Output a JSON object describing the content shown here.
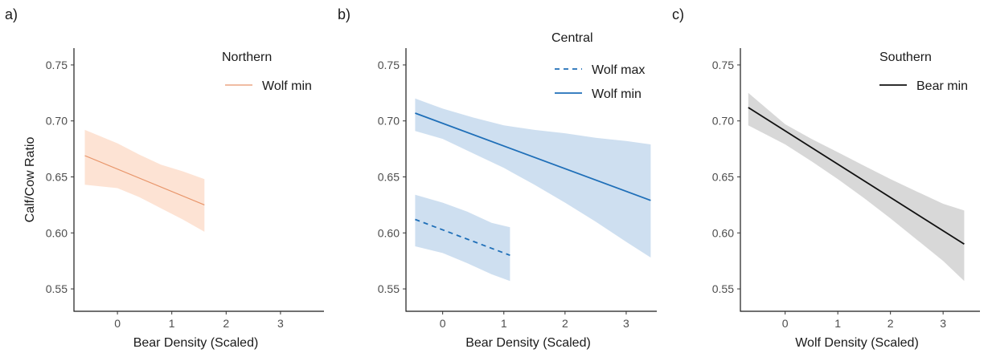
{
  "chart_data": [
    {
      "type": "line",
      "panel_label": "a)",
      "xlabel": "Bear Density (Scaled)",
      "ylabel": "Calf/Cow Ratio",
      "xlim": [
        -0.8,
        3.8
      ],
      "ylim": [
        0.53,
        0.765
      ],
      "xticks": [
        0,
        1,
        2,
        3
      ],
      "yticks": [
        0.55,
        0.6,
        0.65,
        0.7,
        0.75
      ],
      "ytick_labels": [
        "0.55",
        "0.60",
        "0.65",
        "0.70",
        "0.75"
      ],
      "grid": false,
      "legend": {
        "title": "Northern",
        "placement": "top-right"
      },
      "series": [
        {
          "name": "Wolf min",
          "color": "#e8956a",
          "fill": "#fde0cf",
          "dash": "solid",
          "x": [
            -0.6,
            1.6
          ],
          "y": [
            0.669,
            0.625
          ],
          "band_x": [
            -0.6,
            0.0,
            0.4,
            0.8,
            1.2,
            1.6
          ],
          "band_lower": [
            0.643,
            0.64,
            0.632,
            0.622,
            0.612,
            0.601
          ],
          "band_upper": [
            0.692,
            0.68,
            0.67,
            0.661,
            0.655,
            0.648
          ]
        }
      ]
    },
    {
      "type": "line",
      "panel_label": "b)",
      "xlabel": "Bear Density (Scaled)",
      "ylabel": "",
      "xlim": [
        -0.6,
        3.5
      ],
      "ylim": [
        0.53,
        0.765
      ],
      "xticks": [
        0,
        1,
        2,
        3
      ],
      "yticks": [
        0.55,
        0.6,
        0.65,
        0.7,
        0.75
      ],
      "ytick_labels": [
        "0.55",
        "0.60",
        "0.65",
        "0.70",
        "0.75"
      ],
      "grid": false,
      "legend": {
        "title": "Central",
        "placement": "top-right"
      },
      "series": [
        {
          "name": "Wolf max",
          "color": "#1f6fb8",
          "fill": "#c9dcee",
          "dash": "dashed",
          "x": [
            -0.45,
            1.1
          ],
          "y": [
            0.612,
            0.58
          ],
          "band_x": [
            -0.45,
            0.0,
            0.4,
            0.8,
            1.1
          ],
          "band_lower": [
            0.588,
            0.582,
            0.573,
            0.563,
            0.557
          ],
          "band_upper": [
            0.634,
            0.627,
            0.619,
            0.609,
            0.605
          ]
        },
        {
          "name": "Wolf min",
          "color": "#1f6fb8",
          "fill": "#c9dcee",
          "dash": "solid",
          "x": [
            -0.45,
            3.4
          ],
          "y": [
            0.707,
            0.629
          ],
          "band_x": [
            -0.45,
            0.0,
            0.5,
            1.0,
            1.5,
            2.0,
            2.5,
            3.0,
            3.4
          ],
          "band_lower": [
            0.691,
            0.684,
            0.671,
            0.658,
            0.643,
            0.627,
            0.61,
            0.592,
            0.578
          ],
          "band_upper": [
            0.72,
            0.711,
            0.703,
            0.696,
            0.692,
            0.689,
            0.685,
            0.682,
            0.679
          ]
        }
      ]
    },
    {
      "type": "line",
      "panel_label": "c)",
      "xlabel": "Wolf Density (Scaled)",
      "ylabel": "",
      "xlim": [
        -0.85,
        3.7
      ],
      "ylim": [
        0.53,
        0.765
      ],
      "xticks": [
        0,
        1,
        2,
        3
      ],
      "yticks": [
        0.55,
        0.6,
        0.65,
        0.7,
        0.75
      ],
      "ytick_labels": [
        "0.55",
        "0.60",
        "0.65",
        "0.70",
        "0.75"
      ],
      "grid": false,
      "legend": {
        "title": "Southern",
        "placement": "top-right"
      },
      "series": [
        {
          "name": "Bear min",
          "color": "#111111",
          "fill": "#d4d4d4",
          "dash": "solid",
          "x": [
            -0.7,
            3.4
          ],
          "y": [
            0.712,
            0.59
          ],
          "band_x": [
            -0.7,
            0.0,
            0.5,
            1.0,
            1.5,
            2.0,
            2.5,
            3.0,
            3.4
          ],
          "band_lower": [
            0.696,
            0.679,
            0.664,
            0.648,
            0.631,
            0.613,
            0.594,
            0.575,
            0.557
          ],
          "band_upper": [
            0.725,
            0.697,
            0.684,
            0.672,
            0.66,
            0.648,
            0.637,
            0.626,
            0.62
          ]
        }
      ]
    }
  ]
}
